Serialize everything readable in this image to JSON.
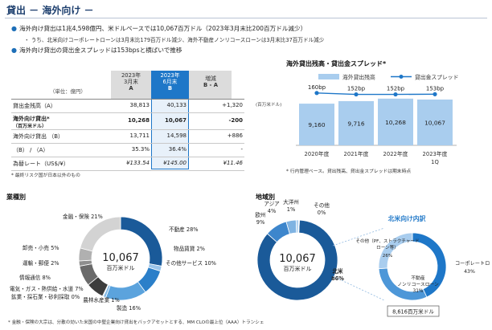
{
  "header": {
    "title": "貸出 － 海外向け －",
    "bullets": [
      "海外向け貸出は1兆4,598億円、米ドルベースでは10,067百万ドル（2023年3月末比200百万ドル減少）",
      "海外向け貸出の貸出金スプレッドは153bpsと横ばいで推移"
    ],
    "sub_bullet": "・ うち、北米向けコーポレートローンは3月末比179百万ドル減少、海外不動産ノンリコースローンは3月末比37百万ドル減少"
  },
  "table": {
    "unit": "（単位：億円）",
    "columns": [
      {
        "l1": "2023年",
        "l2": "3月末",
        "l3": "A"
      },
      {
        "l1": "2023年",
        "l2": "6月末",
        "l3": "B"
      },
      {
        "l1": "増減",
        "l2": "B - A",
        "l3": ""
      }
    ],
    "rows": [
      {
        "label": "貸出金残高（A）",
        "label2": "",
        "a": "38,813",
        "b": "40,133",
        "c": "+1,320",
        "bold": false
      },
      {
        "label": "海外向け貸出*",
        "label2": "（百万米ドル）",
        "a": "10,268",
        "b": "10,067",
        "c": "-200",
        "bold": true
      },
      {
        "label": "海外向け貸出 （B）",
        "label2": "",
        "a": "13,711",
        "b": "14,598",
        "c": "+886",
        "bold": false
      },
      {
        "label": "（B） / （A）",
        "label2": "",
        "a": "35.3%",
        "b": "36.4%",
        "c": "-",
        "bold": false
      },
      {
        "label": "為替レート（US$/¥）",
        "label2": "",
        "a": "¥133.54",
        "b": "¥145.00",
        "c": "¥11.46",
        "bold": false
      }
    ],
    "footnote": "* 最終リスク国が日本以外のもの"
  },
  "balance_chart": {
    "title": "海外貸出残高・貸出金スプレッド*",
    "legend_bar": "海外貸出残高",
    "legend_line": "貸出金スプレッド",
    "unit": "(百万米ドル)",
    "footnote": "* 行内管理ベース。貸出残高、貸出金スプレッドは期末時点"
  },
  "industry": {
    "title": "業種別",
    "center_value": "10,067",
    "center_unit": "百万米ドル",
    "footnote": "* 金融・保険の大宗は、分散の効いた米国の中堅企業向け貸出をバックアセットとする、MM CLOの最上位（AAA）トランシェ"
  },
  "region": {
    "title": "地域別",
    "center_value": "10,067",
    "center_unit": "百万米ドル",
    "na_title": "北米向け内訳",
    "na_total": "8,616百万米ドル"
  },
  "colors": {
    "navy": "#1a5a99",
    "blue": "#1e77c8",
    "light": "#a9cdee",
    "gray": "#9a9a9a",
    "dark": "#555555"
  },
  "chart_data": [
    {
      "type": "bar",
      "title": "海外貸出残高・貸出金スプレッド*",
      "categories": [
        "2020年度",
        "2021年度",
        "2022年度",
        "2023年度 1Q"
      ],
      "series": [
        {
          "name": "海外貸出残高",
          "values": [
            9160,
            9716,
            10268,
            10067
          ],
          "labels": [
            "9,160",
            "9,716",
            "10,268",
            "10,067"
          ]
        },
        {
          "name": "貸出金スプレッド",
          "values": [
            160,
            152,
            152,
            153
          ],
          "labels": [
            "160bp",
            "152bp",
            "152bp",
            "153bp"
          ]
        }
      ],
      "ylabel": "(百万米ドル)",
      "ylim": [
        0,
        12000
      ]
    },
    {
      "type": "pie",
      "title": "業種別",
      "slices": [
        {
          "label": "不動産",
          "value": 28,
          "text": "不動産 28%"
        },
        {
          "label": "物品賃貸",
          "value": 2,
          "text": "物品賃貸 2%"
        },
        {
          "label": "その他サービス",
          "value": 10,
          "text": "その他サービス 10%"
        },
        {
          "label": "製造",
          "value": 16,
          "text": "製造 16%"
        },
        {
          "label": "農林水産業",
          "value": 1,
          "text": "農林水産業 1%"
        },
        {
          "label": "鉱業・採石業・砂利採取",
          "value": 0,
          "text": "鉱業・採石業・砂利採取 0%"
        },
        {
          "label": "電気・ガス・熱供給・水道",
          "value": 7,
          "text": "電気・ガス・熱供給・水道 7%"
        },
        {
          "label": "情報通信",
          "value": 8,
          "text": "情報通信 8%"
        },
        {
          "label": "運輸・郵便",
          "value": 2,
          "text": "運輸・郵便 2%"
        },
        {
          "label": "卸売・小売",
          "value": 5,
          "text": "卸売・小売 5%"
        },
        {
          "label": "金融・保険",
          "value": 21,
          "text": "金融・保険 21%"
        }
      ]
    },
    {
      "type": "pie",
      "title": "地域別",
      "slices": [
        {
          "label": "北米",
          "value": 86,
          "text": "北米 86%"
        },
        {
          "label": "欧州",
          "value": 9,
          "text": "欧州 9%"
        },
        {
          "label": "アジア",
          "value": 4,
          "text": "アジア 4%"
        },
        {
          "label": "大洋州",
          "value": 1,
          "text": "大洋州 1%"
        },
        {
          "label": "その他",
          "value": 0,
          "text": "その他 0%"
        }
      ]
    },
    {
      "type": "pie",
      "title": "北米向け内訳",
      "slices": [
        {
          "label": "コーポレートローン",
          "value": 43,
          "text": "コーポレートローン 43%"
        },
        {
          "label": "不動産ノンリコースローン",
          "value": 31,
          "text": "不動産 ノンリコースローン 31%"
        },
        {
          "label": "その他（PF、ストラクチャードローン等）",
          "value": 26,
          "text": "その他（PF、ストラクチャード ローン等） 26%"
        }
      ]
    }
  ]
}
